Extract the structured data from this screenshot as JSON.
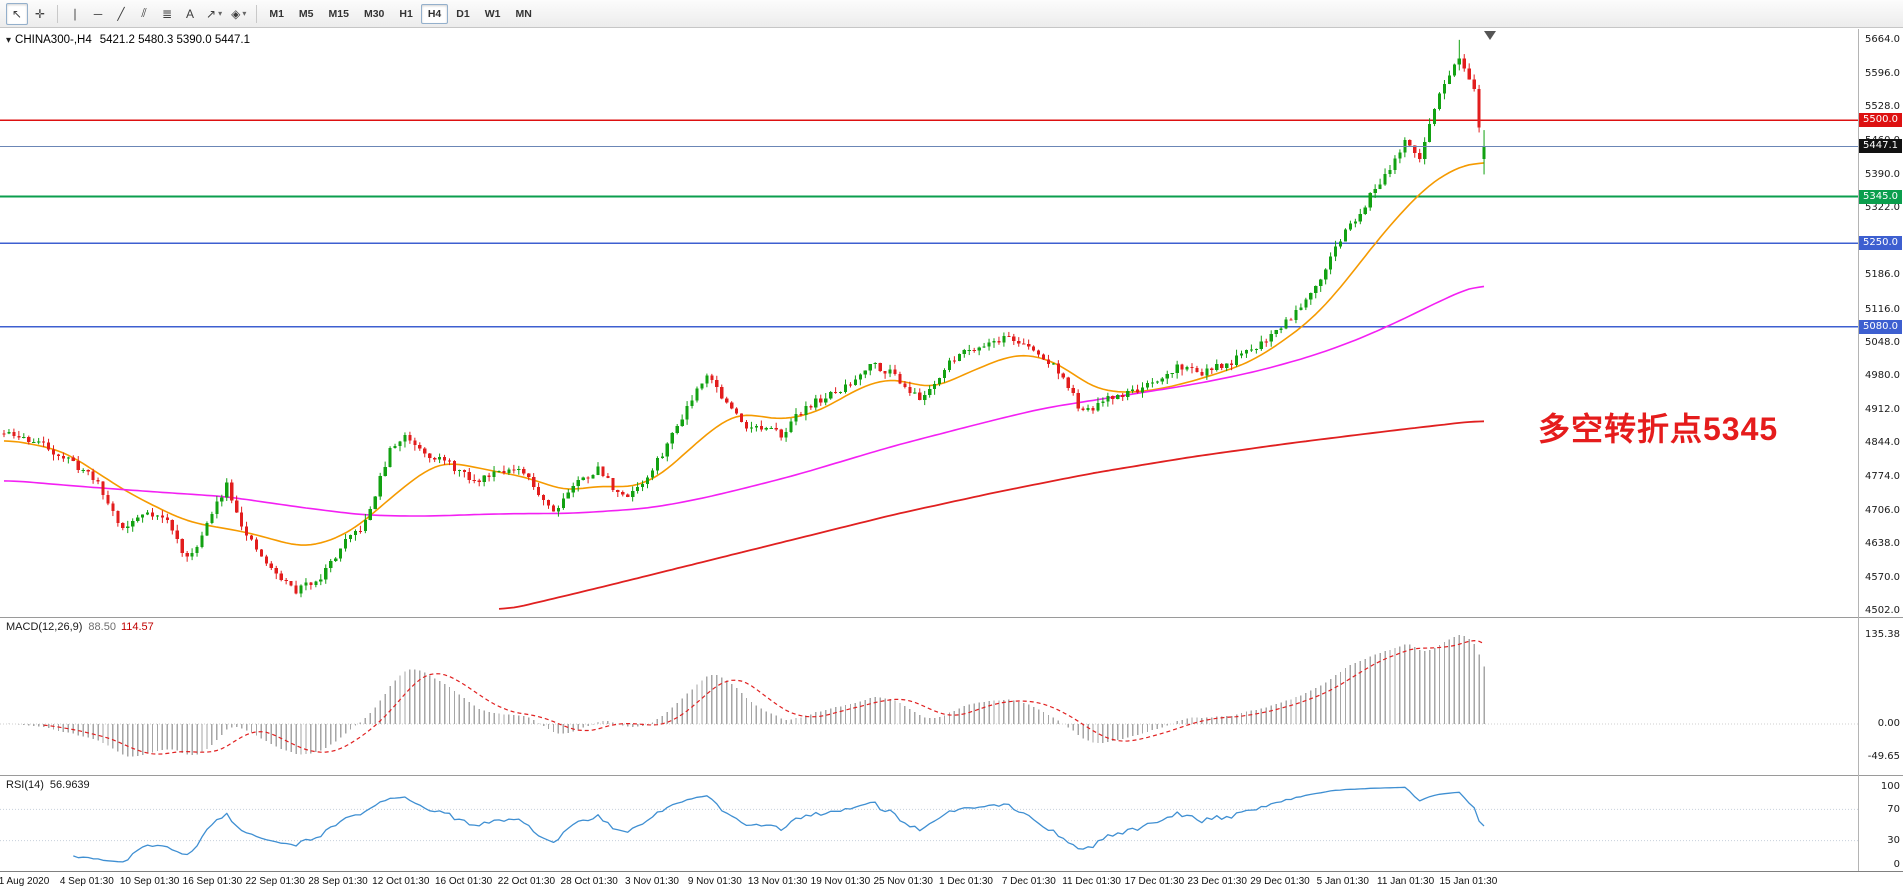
{
  "toolbar": {
    "active_tool": "cursor",
    "tools": [
      {
        "name": "cursor",
        "glyph": "↖"
      },
      {
        "name": "crosshair",
        "glyph": "✛"
      },
      {
        "name": "separator"
      },
      {
        "name": "vertical-line",
        "glyph": "∣"
      },
      {
        "name": "horizontal-line",
        "glyph": "─"
      },
      {
        "name": "trendline",
        "glyph": "╱"
      },
      {
        "name": "channel",
        "glyph": "⫽"
      },
      {
        "name": "fibonacci",
        "glyph": "≣"
      },
      {
        "name": "text",
        "glyph": "A"
      },
      {
        "name": "arrows",
        "glyph": "↗",
        "dropdown": true
      },
      {
        "name": "shapes",
        "glyph": "◈",
        "dropdown": true
      },
      {
        "name": "separator"
      }
    ],
    "timeframes": [
      "M1",
      "M5",
      "M15",
      "M30",
      "H1",
      "H4",
      "D1",
      "W1",
      "MN"
    ],
    "active_timeframe": "H4"
  },
  "symbol_bar": {
    "dropdown_glyph": "▾",
    "symbol": "CHINA300-,H4",
    "ohlc": "5421.2 5480.3 5390.0 5447.1"
  },
  "chart_data": {
    "type": "candlestick",
    "symbol": "CHINA300-",
    "period": "H4",
    "last_bar": {
      "open": 5421.2,
      "high": 5480.3,
      "low": 5390.0,
      "close": 5447.1
    },
    "price_axis": {
      "visible_min": 4493,
      "visible_max": 5682,
      "ticks": [
        {
          "value": 5664,
          "label": "5664.0"
        },
        {
          "value": 5596,
          "label": "5596.0"
        },
        {
          "value": 5528,
          "label": "5528.0"
        },
        {
          "value": 5460,
          "label": "5460.0"
        },
        {
          "value": 5390,
          "label": "5390.0"
        },
        {
          "value": 5322,
          "label": "5322.0"
        },
        {
          "value": 5254,
          "label": "5254.0"
        },
        {
          "value": 5186,
          "label": "5186.0"
        },
        {
          "value": 5116,
          "label": "5116.0"
        },
        {
          "value": 5048,
          "label": "5048.0"
        },
        {
          "value": 4980,
          "label": "4980.0"
        },
        {
          "value": 4912,
          "label": "4912.0"
        },
        {
          "value": 4844,
          "label": "4844.0"
        },
        {
          "value": 4774,
          "label": "4774.0"
        },
        {
          "value": 4706,
          "label": "4706.0"
        },
        {
          "value": 4638,
          "label": "4638.0"
        },
        {
          "value": 4570,
          "label": "4570.0"
        },
        {
          "value": 4502,
          "label": "4502.0"
        }
      ]
    },
    "levels": [
      {
        "value": 5500.0,
        "label": "5500.0",
        "color": "#dd1111",
        "width": 1.6,
        "kind": "resistance-line"
      },
      {
        "value": 5345.0,
        "label": "5345.0",
        "color": "#0b9e4d",
        "width": 2,
        "kind": "pivot-line"
      },
      {
        "value": 5250.0,
        "label": "5250.0",
        "color": "#3d5fd0",
        "width": 1.8,
        "kind": "support-line"
      },
      {
        "value": 5080.0,
        "label": "5080.0",
        "color": "#3d5fd0",
        "width": 1.8,
        "kind": "support-line"
      },
      {
        "value": 5447.1,
        "label": "5447.1",
        "color": "#111111",
        "line_color": "#6b86b6",
        "width": 1.1,
        "kind": "current-price"
      }
    ],
    "annotation": {
      "text": "多空转折点5345",
      "color": "#e51c1c"
    },
    "candles": {
      "count": 300,
      "seed": 11,
      "jitter": 16,
      "wick": 12,
      "up_color": "#12a112",
      "down_color": "#e21d1d",
      "peak_index": 294,
      "peak_high": 5664,
      "close_anchors": [
        [
          0,
          4862
        ],
        [
          7,
          4845
        ],
        [
          13,
          4808
        ],
        [
          18,
          4775
        ],
        [
          24,
          4668
        ],
        [
          29,
          4705
        ],
        [
          33,
          4685
        ],
        [
          37,
          4605
        ],
        [
          40,
          4655
        ],
        [
          45,
          4762
        ],
        [
          49,
          4652
        ],
        [
          54,
          4585
        ],
        [
          59,
          4542
        ],
        [
          64,
          4572
        ],
        [
          69,
          4640
        ],
        [
          73,
          4680
        ],
        [
          78,
          4828
        ],
        [
          81,
          4858
        ],
        [
          86,
          4820
        ],
        [
          90,
          4800
        ],
        [
          95,
          4762
        ],
        [
          100,
          4792
        ],
        [
          105,
          4780
        ],
        [
          111,
          4705
        ],
        [
          115,
          4758
        ],
        [
          120,
          4790
        ],
        [
          125,
          4732
        ],
        [
          130,
          4770
        ],
        [
          134,
          4840
        ],
        [
          138,
          4918
        ],
        [
          142,
          4988
        ],
        [
          146,
          4922
        ],
        [
          150,
          4880
        ],
        [
          157,
          4862
        ],
        [
          162,
          4918
        ],
        [
          167,
          4940
        ],
        [
          171,
          4962
        ],
        [
          175,
          5008
        ],
        [
          180,
          4982
        ],
        [
          185,
          4930
        ],
        [
          189,
          4980
        ],
        [
          193,
          5028
        ],
        [
          199,
          5048
        ],
        [
          203,
          5060
        ],
        [
          208,
          5030
        ],
        [
          213,
          4992
        ],
        [
          218,
          4902
        ],
        [
          223,
          4932
        ],
        [
          228,
          4950
        ],
        [
          233,
          4962
        ],
        [
          237,
          5000
        ],
        [
          242,
          4988
        ],
        [
          247,
          5002
        ],
        [
          252,
          5032
        ],
        [
          257,
          5072
        ],
        [
          261,
          5112
        ],
        [
          266,
          5182
        ],
        [
          270,
          5258
        ],
        [
          275,
          5330
        ],
        [
          279,
          5392
        ],
        [
          283,
          5452
        ],
        [
          286,
          5420
        ],
        [
          289,
          5530
        ],
        [
          292,
          5592
        ],
        [
          294,
          5622
        ],
        [
          297,
          5556
        ],
        [
          298,
          5482
        ],
        [
          299,
          5447.1
        ]
      ]
    },
    "moving_averages": [
      {
        "name": "fast-ma",
        "color": "#f59a00",
        "width": 1.6,
        "anchors": [
          [
            0,
            4852
          ],
          [
            12,
            4828
          ],
          [
            25,
            4742
          ],
          [
            37,
            4682
          ],
          [
            49,
            4662
          ],
          [
            61,
            4628
          ],
          [
            70,
            4660
          ],
          [
            80,
            4748
          ],
          [
            88,
            4808
          ],
          [
            98,
            4788
          ],
          [
            108,
            4768
          ],
          [
            113,
            4742
          ],
          [
            120,
            4758
          ],
          [
            127,
            4750
          ],
          [
            133,
            4778
          ],
          [
            140,
            4846
          ],
          [
            148,
            4908
          ],
          [
            157,
            4888
          ],
          [
            165,
            4908
          ],
          [
            173,
            4958
          ],
          [
            180,
            4978
          ],
          [
            187,
            4950
          ],
          [
            195,
            4988
          ],
          [
            205,
            5028
          ],
          [
            213,
            5008
          ],
          [
            220,
            4952
          ],
          [
            228,
            4944
          ],
          [
            237,
            4960
          ],
          [
            245,
            4984
          ],
          [
            252,
            5008
          ],
          [
            258,
            5048
          ],
          [
            264,
            5092
          ],
          [
            270,
            5158
          ],
          [
            276,
            5238
          ],
          [
            282,
            5310
          ],
          [
            288,
            5372
          ],
          [
            294,
            5408
          ],
          [
            299,
            5418
          ]
        ]
      },
      {
        "name": "medium-ma",
        "color": "#f320f3",
        "width": 1.6,
        "anchors": [
          [
            0,
            4768
          ],
          [
            15,
            4755
          ],
          [
            30,
            4744
          ],
          [
            45,
            4734
          ],
          [
            60,
            4712
          ],
          [
            73,
            4696
          ],
          [
            85,
            4694
          ],
          [
            100,
            4699
          ],
          [
            115,
            4700
          ],
          [
            130,
            4710
          ],
          [
            140,
            4728
          ],
          [
            150,
            4752
          ],
          [
            160,
            4778
          ],
          [
            170,
            4808
          ],
          [
            180,
            4838
          ],
          [
            190,
            4864
          ],
          [
            200,
            4890
          ],
          [
            210,
            4914
          ],
          [
            220,
            4930
          ],
          [
            230,
            4946
          ],
          [
            240,
            4962
          ],
          [
            250,
            4982
          ],
          [
            258,
            5002
          ],
          [
            266,
            5026
          ],
          [
            274,
            5056
          ],
          [
            282,
            5092
          ],
          [
            290,
            5132
          ],
          [
            299,
            5172
          ]
        ]
      },
      {
        "name": "slow-ma",
        "color": "#e02020",
        "width": 1.8,
        "anchors": [
          [
            100,
            4500
          ],
          [
            120,
            4548
          ],
          [
            140,
            4598
          ],
          [
            160,
            4648
          ],
          [
            180,
            4698
          ],
          [
            200,
            4742
          ],
          [
            220,
            4782
          ],
          [
            240,
            4815
          ],
          [
            260,
            4843
          ],
          [
            280,
            4868
          ],
          [
            299,
            4890
          ]
        ]
      }
    ],
    "macd": {
      "label": "MACD(12,26,9)",
      "value_main": "88.50",
      "value_signal": "114.57",
      "histogram_color": "#a6a6a6",
      "signal_color": "#e02020",
      "scale_ticks": [
        {
          "value": 135.38,
          "label": "135.38"
        },
        {
          "value": 0,
          "label": "0.00"
        },
        {
          "value": -49.65,
          "label": "-49.65"
        }
      ]
    },
    "rsi": {
      "label": "RSI(14)",
      "value": "56.9639",
      "line_color": "#3f8fd2",
      "levels": [
        70,
        30
      ],
      "scale_ticks": [
        {
          "value": 100,
          "label": "100"
        },
        {
          "value": 70,
          "label": "70"
        },
        {
          "value": 30,
          "label": "30"
        },
        {
          "value": 0,
          "label": "0"
        }
      ]
    },
    "time_axis": {
      "labels": [
        "1 Aug 2020",
        "4 Sep 01:30",
        "10 Sep 01:30",
        "16 Sep 01:30",
        "22 Sep 01:30",
        "28 Sep 01:30",
        "12 Oct 01:30",
        "16 Oct 01:30",
        "22 Oct 01:30",
        "28 Oct 01:30",
        "3 Nov 01:30",
        "9 Nov 01:30",
        "13 Nov 01:30",
        "19 Nov 01:30",
        "25 Nov 01:30",
        "1 Dec 01:30",
        "7 Dec 01:30",
        "11 Dec 01:30",
        "17 Dec 01:30",
        "23 Dec 01:30",
        "29 Dec 01:30",
        "5 Jan 01:30",
        "11 Jan 01:30",
        "15 Jan 01:30"
      ]
    }
  }
}
